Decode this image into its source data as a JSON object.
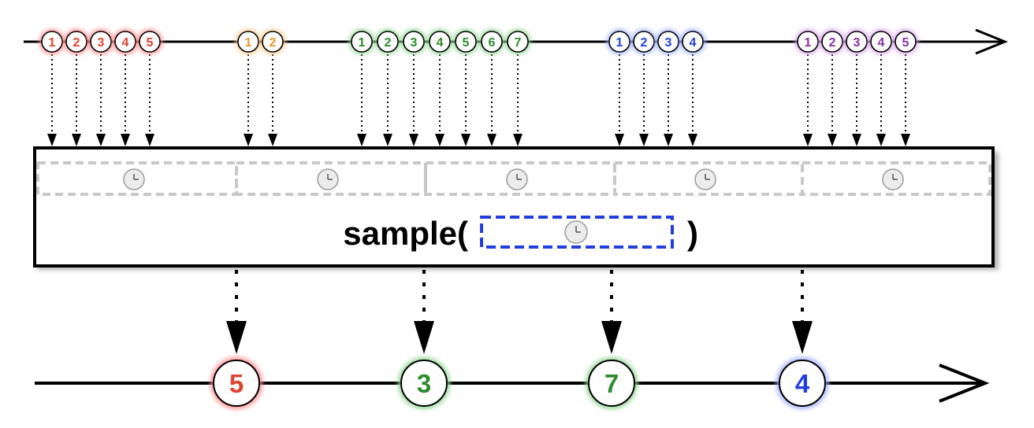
{
  "operator": {
    "label_prefix": "sample(",
    "label_suffix": ")",
    "icon": "clock-icon"
  },
  "source": {
    "groups": [
      {
        "color": "#e0432f",
        "glow": "#ff8a8a",
        "items": [
          "1",
          "2",
          "3",
          "4",
          "5"
        ]
      },
      {
        "color": "#f0962a",
        "glow": "#ffc98a",
        "items": [
          "1",
          "2"
        ]
      },
      {
        "color": "#2e8b2e",
        "glow": "#8fd68f",
        "items": [
          "1",
          "2",
          "3",
          "4",
          "5",
          "6",
          "7"
        ]
      },
      {
        "color": "#1f3fe0",
        "glow": "#9fb0ff",
        "items": [
          "1",
          "2",
          "3",
          "4"
        ]
      },
      {
        "color": "#8a2fa0",
        "glow": "#d9a3ea",
        "items": [
          "1",
          "2",
          "3",
          "4",
          "5"
        ]
      }
    ]
  },
  "output": {
    "items": [
      {
        "label": "5",
        "color": "#e0432f",
        "glow": "#ff8a8a"
      },
      {
        "label": "3",
        "color": "#2e8b2e",
        "glow": "#8fd68f"
      },
      {
        "label": "7",
        "color": "#2e8b2e",
        "glow": "#8fd68f"
      },
      {
        "label": "4",
        "color": "#1f3fe0",
        "glow": "#9fb0ff"
      }
    ]
  },
  "colors": {
    "line": "#000000",
    "sampler_dash": "#1f3fe0",
    "window_dash": "#c8c8c8"
  }
}
